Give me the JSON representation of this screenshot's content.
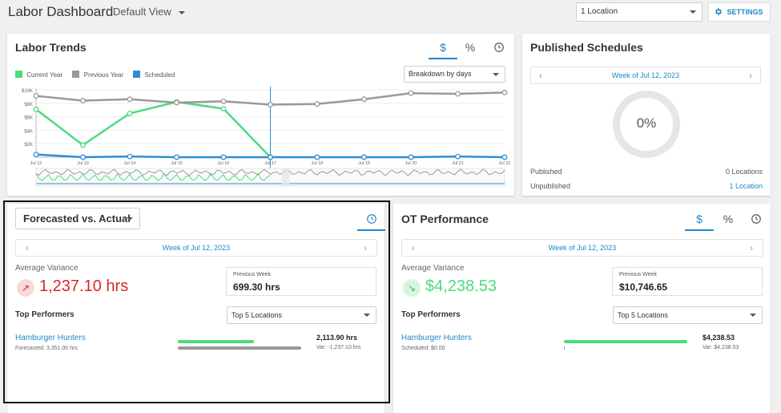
{
  "header": {
    "title": "Labor Dashboard",
    "view_select": "Default View",
    "location_select": "1 Location",
    "settings_label": "SETTINGS"
  },
  "labor_trends": {
    "title": "Labor Trends",
    "tabs": [
      "$",
      "%"
    ],
    "legend": [
      "Current Year",
      "Previous Year",
      "Scheduled"
    ],
    "breakdown": "Breakdown by days"
  },
  "published_schedules": {
    "title": "Published Schedules",
    "week": "Week of Jul 12, 2023",
    "percent": "0%",
    "published_label": "Published",
    "published_value": "0 Locations",
    "unpublished_label": "Unpublished",
    "unpublished_value": "1 Location"
  },
  "forecasted": {
    "title": "Forecasted vs. Actual",
    "week": "Week of Jul 12, 2023",
    "avg_label": "Average Variance",
    "avg_value": "1,237.10 hrs",
    "prev_label": "Previous Week",
    "prev_value": "699.30 hrs",
    "top_label": "Top Performers",
    "top_select": "Top 5 Locations",
    "performer_name": "Hamburger Hunters",
    "performer_sub": "Forecasted: 3,351.00 hrs",
    "performer_value": "2,113.90 hrs",
    "performer_var": "Var: -1,237.10 hrs",
    "bar_primary": 0.62,
    "bar_secondary": 1.0
  },
  "ot_performance": {
    "title": "OT Performance",
    "tabs": [
      "$",
      "%"
    ],
    "week": "Week of Jul 12, 2023",
    "avg_label": "Average Variance",
    "avg_value": "$4,238.53",
    "prev_label": "Previous Week",
    "prev_value": "$10,746.65",
    "top_label": "Top Performers",
    "top_select": "Top 5 Locations",
    "performer_name": "Hamburger Hunters",
    "performer_sub": "Scheduled: $0.00",
    "performer_value": "$4,238.53",
    "performer_var": "Var: $4,238.53",
    "bar_primary": 1.0,
    "bar_secondary": 0.0
  },
  "colors": {
    "current": "#4ddb7c",
    "previous": "#999999",
    "scheduled": "#2f8fd6",
    "accent": "#1e88c9",
    "negative": "#d9262a",
    "positive": "#4ddb7c"
  },
  "chart_data": {
    "type": "line",
    "title": "Labor Trends",
    "categories": [
      "Jul 12",
      "Jul 13",
      "Jul 14",
      "Jul 15",
      "Jul 16",
      "Jul 17",
      "Jul 18",
      "Jul 19",
      "Jul 20",
      "Jul 21",
      "Jul 22"
    ],
    "y_ticks": [
      "$10K",
      "$8K",
      "$6K",
      "$4K",
      "$2K"
    ],
    "ylim": [
      0,
      10000
    ],
    "series": [
      {
        "name": "Current Year",
        "values": [
          7100,
          1800,
          6500,
          8200,
          7200,
          0,
          null,
          null,
          null,
          null,
          null
        ]
      },
      {
        "name": "Previous Year",
        "values": [
          9100,
          8400,
          8600,
          8100,
          8300,
          7800,
          7900,
          8600,
          9500,
          9400,
          9600
        ]
      },
      {
        "name": "Scheduled",
        "values": [
          400,
          0,
          100,
          0,
          0,
          0,
          0,
          0,
          0,
          100,
          0
        ]
      }
    ]
  }
}
